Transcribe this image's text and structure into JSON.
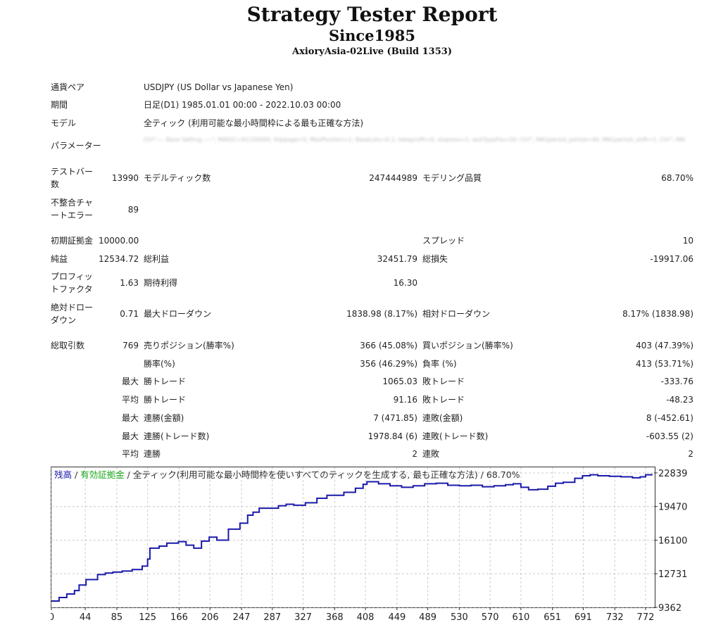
{
  "header": {
    "title": "Strategy Tester Report",
    "subtitle": "Since1985",
    "server": "AxioryAsia-02Live (Build 1353)"
  },
  "info": {
    "symbol_label": "通貨ペア",
    "symbol_value": "USDJPY (US Dollar vs Japanese Yen)",
    "period_label": "期間",
    "period_value": "日足(D1) 1985.01.01 00:00 - 2022.10.03 00:00",
    "model_label": "モデル",
    "model_value": "全ティック (利用可能な最小時間枠による最も正確な方法)",
    "params_label": "パラメーター",
    "params_value": "(blurred)"
  },
  "stats": {
    "bars_label": "テストバー数",
    "bars_value": "13990",
    "ticks_label": "モデルティック数",
    "ticks_value": "247444989",
    "quality_label": "モデリング品質",
    "quality_value": "68.70%",
    "mismatch_label": "不整合チャートエラー",
    "mismatch_value": "89",
    "deposit_label": "初期証拠金",
    "deposit_value": "10000.00",
    "spread_label": "スプレッド",
    "spread_value": "10",
    "net_label": "純益",
    "net_value": "12534.72",
    "gross_profit_label": "総利益",
    "gross_profit_value": "32451.79",
    "gross_loss_label": "総損失",
    "gross_loss_value": "-19917.06",
    "pf_label": "プロフィットファクタ",
    "pf_value": "1.63",
    "expected_label": "期待利得",
    "expected_value": "16.30",
    "abs_dd_label": "絶対ドローダウン",
    "abs_dd_value": "0.71",
    "max_dd_label": "最大ドローダウン",
    "max_dd_value": "1838.98 (8.17%)",
    "rel_dd_label": "相対ドローダウン",
    "rel_dd_value": "8.17% (1838.98)",
    "total_label": "総取引数",
    "total_value": "769",
    "short_label": "売りポジション(勝率%)",
    "short_value": "366 (45.08%)",
    "long_label": "買いポジション(勝率%)",
    "long_value": "403 (47.39%)",
    "win_rate_label": "勝率(%)",
    "win_rate_value": "356 (46.29%)",
    "loss_rate_label": "負率 (%)",
    "loss_rate_value": "413 (53.71%)",
    "max1": "最大",
    "max_win_label": "勝トレード",
    "max_win_value": "1065.03",
    "max_loss_label": "敗トレード",
    "max_loss_value": "-333.76",
    "avg1": "平均",
    "avg_win_label": "勝トレード",
    "avg_win_value": "91.16",
    "avg_loss_label": "敗トレード",
    "avg_loss_value": "-48.23",
    "max2": "最大",
    "cons_wins_amt_label": "連勝(金額)",
    "cons_wins_amt_value": "7 (471.85)",
    "cons_losses_amt_label": "連敗(金額)",
    "cons_losses_amt_value": "8 (-452.61)",
    "max3": "最大",
    "cons_wins_cnt_label": "連勝(トレード数)",
    "cons_wins_cnt_value": "1978.84 (6)",
    "cons_losses_cnt_label": "連敗(トレード数)",
    "cons_losses_cnt_value": "-603.55 (2)",
    "avg2": "平均",
    "avg_cons_wins_label": "連勝",
    "avg_cons_wins_value": "2",
    "avg_cons_losses_label": "連敗",
    "avg_cons_losses_value": "2"
  },
  "chart_legend": {
    "balance": "残高",
    "sep1": " / ",
    "equity": "有効証拠金",
    "sep2": " / ",
    "rest": "全ティック(利用可能な最小時間枠を使いすべてのティックを生成する, 最も正確な方法) / 68.70%"
  },
  "colors": {
    "balance": "#1a1aaa",
    "equity": "#1aaa1a",
    "grid": "#cccccc"
  },
  "chart_data": {
    "type": "line",
    "title": "",
    "xlabel": "",
    "ylabel": "",
    "xlim": [
      0,
      783
    ],
    "ylim": [
      9362,
      23400
    ],
    "y_ticks": [
      9362,
      12731,
      16100,
      19470,
      22839
    ],
    "x_ticks": [
      0,
      44,
      85,
      125,
      166,
      206,
      247,
      287,
      327,
      368,
      408,
      449,
      489,
      530,
      570,
      610,
      651,
      691,
      732,
      772
    ],
    "series": [
      {
        "name": "残高",
        "x": [
          0,
          10,
          20,
          30,
          36,
          45,
          60,
          70,
          80,
          92,
          105,
          118,
          125,
          128,
          140,
          150,
          165,
          175,
          185,
          195,
          205,
          215,
          230,
          245,
          255,
          262,
          270,
          282,
          295,
          305,
          315,
          330,
          345,
          358,
          365,
          380,
          395,
          405,
          410,
          425,
          440,
          455,
          470,
          485,
          500,
          515,
          530,
          545,
          560,
          575,
          590,
          600,
          610,
          620,
          632,
          645,
          655,
          665,
          680,
          690,
          700,
          710,
          725,
          740,
          755,
          765,
          772,
          780
        ],
        "y": [
          10000,
          10350,
          10700,
          11050,
          11600,
          12150,
          12650,
          12800,
          12900,
          13000,
          13150,
          13500,
          14200,
          15300,
          15500,
          15800,
          15950,
          15600,
          15300,
          16000,
          16400,
          16100,
          17200,
          17800,
          18600,
          18900,
          19300,
          19300,
          19550,
          19700,
          19600,
          19850,
          20300,
          20600,
          20600,
          20900,
          21300,
          21700,
          21950,
          21750,
          21550,
          21400,
          21550,
          21750,
          21800,
          21600,
          21550,
          21600,
          21450,
          21550,
          21650,
          21750,
          21400,
          21150,
          21200,
          21500,
          21800,
          21900,
          22300,
          22550,
          22650,
          22550,
          22500,
          22450,
          22350,
          22450,
          22650,
          22750
        ]
      },
      {
        "name": "有効証拠金",
        "x": [],
        "y": []
      }
    ]
  }
}
